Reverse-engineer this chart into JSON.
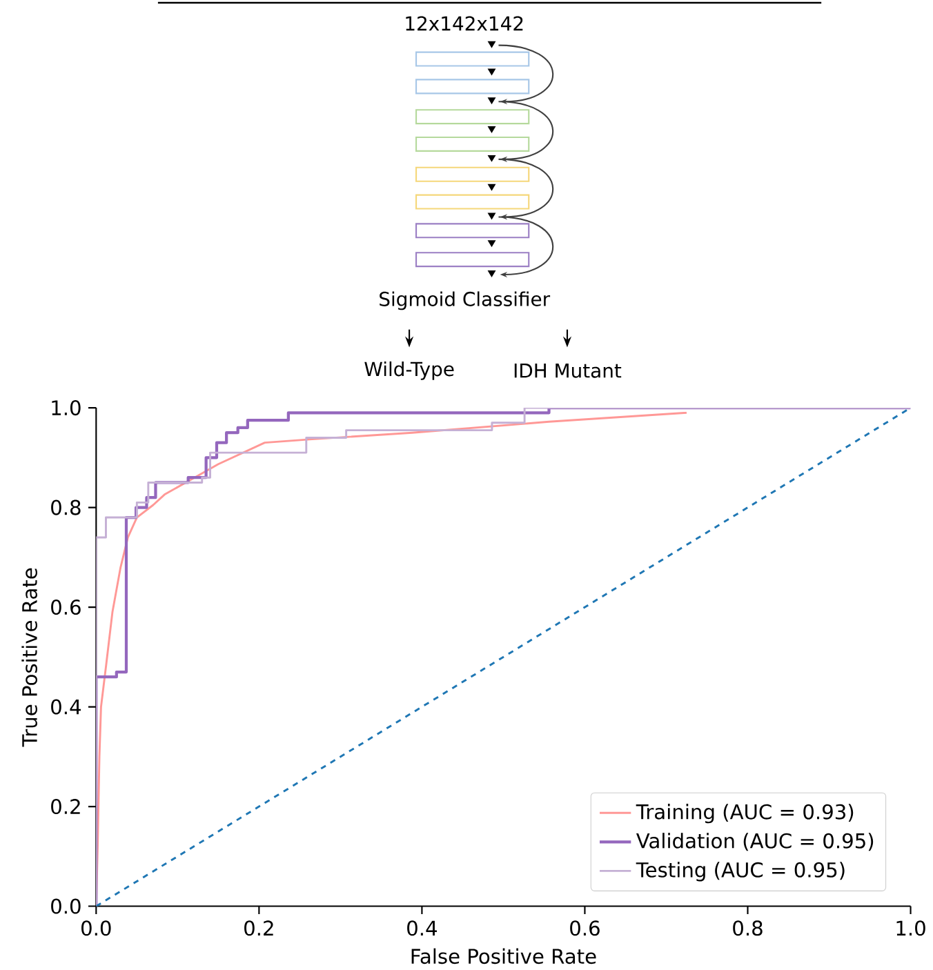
{
  "chart_data": {
    "type": "line",
    "xlabel": "False Positive Rate",
    "ylabel": "True Positive Rate",
    "annotations": [
      "12x142x142",
      "Sigmoid Classifier",
      "Wild-Type",
      "IDH Mutant"
    ],
    "xlim": [
      0,
      1
    ],
    "ylim": [
      0,
      1
    ],
    "xticks": [
      {
        "value": 0,
        "label": "0.0"
      },
      {
        "value": 0.2,
        "label": "0.2"
      },
      {
        "value": 0.4,
        "label": "0.4"
      },
      {
        "value": 0.6,
        "label": "0.6"
      },
      {
        "value": 0.8,
        "label": "0.8"
      },
      {
        "value": 1,
        "label": "1.0"
      }
    ],
    "yticks": [
      {
        "value": 0,
        "label": "0.0"
      },
      {
        "value": 0.2,
        "label": "0.2"
      },
      {
        "value": 0.4,
        "label": "0.4"
      },
      {
        "value": 0.6,
        "label": "0.6"
      },
      {
        "value": 0.8,
        "label": "0.8"
      },
      {
        "value": 1,
        "label": "1.0"
      }
    ],
    "legend": "bottom right",
    "grid": false,
    "marker": "none",
    "series": [
      {
        "name": "Training (AUC = 0.93)",
        "color": "#ff9896",
        "line_style": "solid",
        "x": [
          0,
          0.002,
          0.004,
          0.006,
          0.012,
          0.02,
          0.03,
          0.039,
          0.05,
          0.07,
          0.084,
          0.11,
          0.15,
          0.207,
          0.265,
          0.388,
          0.556,
          0.725
        ],
        "values": [
          0,
          0.13,
          0.3,
          0.4,
          0.48,
          0.59,
          0.68,
          0.74,
          0.78,
          0.805,
          0.826,
          0.85,
          0.887,
          0.93,
          0.937,
          0.95,
          0.972,
          0.99
        ]
      },
      {
        "name": "Validation (AUC = 0.95)",
        "color": "#9467bd",
        "line_style": "solid",
        "x": [
          0,
          0,
          0.025,
          0.025,
          0.037,
          0.037,
          0.049,
          0.049,
          0.062,
          0.062,
          0.073,
          0.073,
          0.113,
          0.113,
          0.135,
          0.135,
          0.148,
          0.148,
          0.16,
          0.16,
          0.174,
          0.174,
          0.186,
          0.186,
          0.236,
          0.236,
          0.556,
          0.556,
          1
        ],
        "values": [
          0,
          0.46,
          0.46,
          0.47,
          0.47,
          0.78,
          0.78,
          0.8,
          0.8,
          0.82,
          0.82,
          0.85,
          0.85,
          0.86,
          0.86,
          0.9,
          0.9,
          0.93,
          0.93,
          0.95,
          0.95,
          0.96,
          0.96,
          0.975,
          0.975,
          0.99,
          0.99,
          1,
          1
        ]
      },
      {
        "name": "Testing (AUC = 0.95)",
        "color": "#c5b0d5",
        "line_style": "solid",
        "x": [
          0,
          0,
          0.012,
          0.012,
          0.05,
          0.05,
          0.064,
          0.064,
          0.13,
          0.13,
          0.14,
          0.14,
          0.258,
          0.258,
          0.307,
          0.307,
          0.486,
          0.486,
          0.526,
          0.526,
          1
        ],
        "values": [
          0,
          0.74,
          0.74,
          0.78,
          0.78,
          0.81,
          0.81,
          0.85,
          0.85,
          0.86,
          0.86,
          0.91,
          0.91,
          0.94,
          0.94,
          0.955,
          0.955,
          0.97,
          0.97,
          1,
          1
        ]
      },
      {
        "color": "#1f77b4",
        "line_style": "dashed",
        "x": [
          0,
          1
        ],
        "values": [
          0,
          1
        ]
      }
    ]
  }
}
